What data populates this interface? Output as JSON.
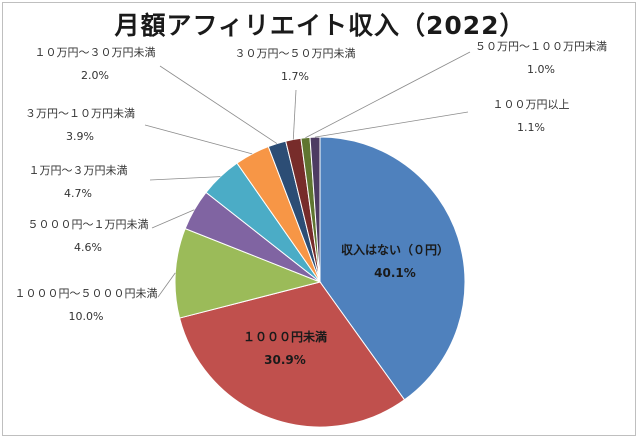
{
  "chart_data": {
    "type": "pie",
    "title": "月額アフィリエイト収入（2022）",
    "slices": [
      {
        "label": "収入はない（０円）",
        "value": 40.1,
        "display": "40.1%",
        "color": "#4F81BD"
      },
      {
        "label": "１０００円未満",
        "value": 30.9,
        "display": "30.9%",
        "color": "#C0504D"
      },
      {
        "label": "１０００円～５０００円未満",
        "value": 10.0,
        "display": "10.0%",
        "color": "#9BBB59"
      },
      {
        "label": "５０００円～１万円未満",
        "value": 4.6,
        "display": "4.6%",
        "color": "#8064A2"
      },
      {
        "label": "１万円～３万円未満",
        "value": 4.7,
        "display": "4.7%",
        "color": "#4BACC6"
      },
      {
        "label": "３万円～１０万円未満",
        "value": 3.9,
        "display": "3.9%",
        "color": "#F79646"
      },
      {
        "label": "１０万円～３０万円未満",
        "value": 2.0,
        "display": "2.0%",
        "color": "#2C4D75"
      },
      {
        "label": "３０万円～５０万円未満",
        "value": 1.7,
        "display": "1.7%",
        "color": "#772C2A"
      },
      {
        "label": "５０万円～１００万円未満",
        "value": 1.0,
        "display": "1.0%",
        "color": "#5F7530"
      },
      {
        "label": "１００万円以上",
        "value": 1.1,
        "display": "1.1%",
        "color": "#4D3B62"
      }
    ]
  }
}
